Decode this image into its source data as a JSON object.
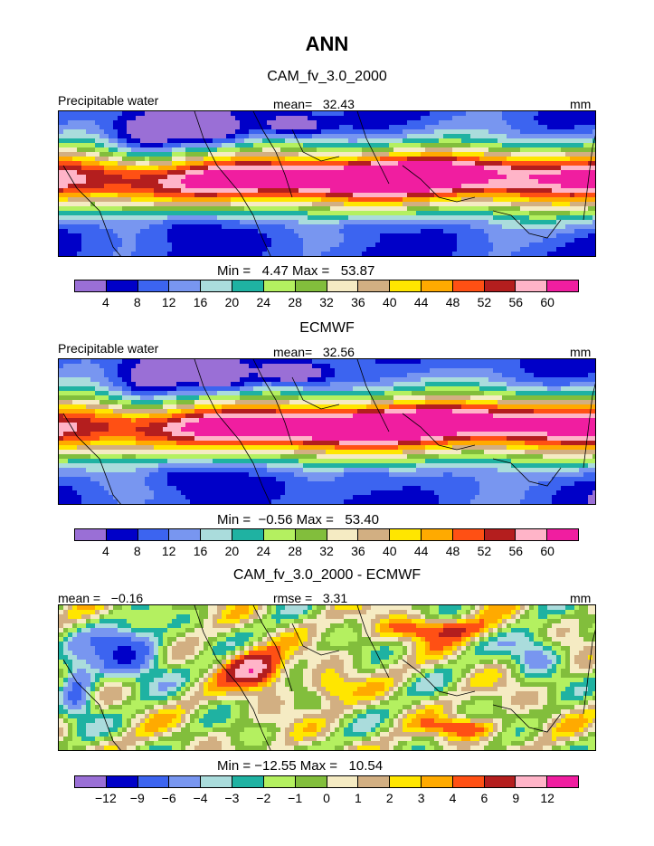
{
  "title": "ANN",
  "palette_levels": [
    "#9a6fd6",
    "#0000c8",
    "#3c64f0",
    "#7896f0",
    "#aadcdc",
    "#1fb2a2",
    "#b4f060",
    "#82be3c",
    "#f5ebc3",
    "#d2af82",
    "#ffe600",
    "#ffaa00",
    "#ff5014",
    "#b41e1e",
    "#ffb4c8",
    "#f01ea0"
  ],
  "chart_data": [
    {
      "type": "heatmap",
      "title": "CAM_fv_3.0_2000",
      "field": "Precipitable water",
      "units": "mm",
      "stat_label": "mean=",
      "stat_value": "32.43",
      "min_label": "Min =",
      "min_value": "4.47",
      "max_label": "Max =",
      "max_value": "53.87",
      "contour_levels": [
        "4",
        "8",
        "12",
        "16",
        "20",
        "24",
        "28",
        "32",
        "36",
        "40",
        "44",
        "48",
        "52",
        "56",
        "60"
      ],
      "mean": 32.43,
      "min": 4.47,
      "max": 53.87
    },
    {
      "type": "heatmap",
      "title": "ECMWF",
      "field": "Precipitable water",
      "units": "mm",
      "stat_label": "mean=",
      "stat_value": "32.56",
      "min_label": "Min =",
      "min_value": "−0.56",
      "max_label": "Max =",
      "max_value": "53.40",
      "contour_levels": [
        "4",
        "8",
        "12",
        "16",
        "20",
        "24",
        "28",
        "32",
        "36",
        "40",
        "44",
        "48",
        "52",
        "56",
        "60"
      ],
      "mean": 32.56,
      "min": -0.56,
      "max": 53.4
    },
    {
      "type": "heatmap",
      "title": "CAM_fv_3.0_2000 - ECMWF",
      "units": "mm",
      "mean_label": "mean =",
      "mean_value": "−0.16",
      "rmse_label": "rmse =",
      "rmse_value": "3.31",
      "min_label": "Min =",
      "min_value": "−12.55",
      "max_label": "Max =",
      "max_value": "10.54",
      "contour_levels": [
        "−12",
        "−9",
        "−6",
        "−4",
        "−3",
        "−2",
        "−1",
        "0",
        "1",
        "2",
        "3",
        "4",
        "6",
        "9",
        "12"
      ],
      "mean": -0.16,
      "rmse": 3.31,
      "min": -12.55,
      "max": 10.54
    }
  ]
}
